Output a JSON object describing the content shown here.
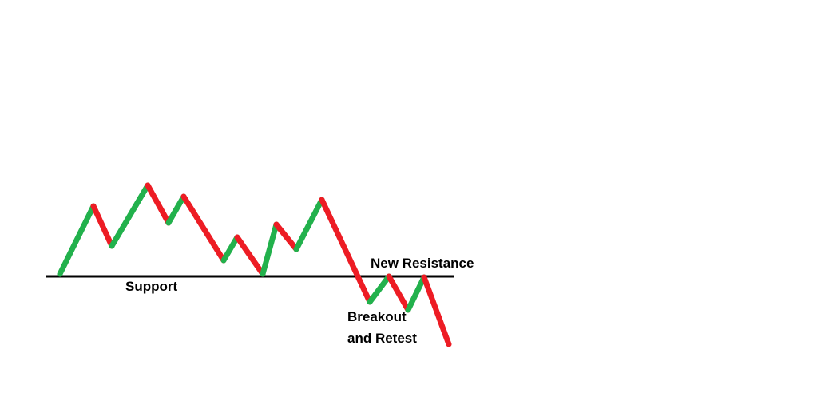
{
  "diagram": {
    "labels": {
      "support": "Support",
      "new_resistance": "New Resistance",
      "breakout_line1": "Breakout",
      "breakout_line2": "and Retest"
    },
    "colors": {
      "up_segment": "#22b14c",
      "down_segment": "#ed1c24",
      "level_line": "#000000",
      "background": "#ffffff"
    },
    "price_path": {
      "description_points": [
        "low",
        "high",
        "pullback",
        "high",
        "pullback",
        "high",
        "decline",
        "bounce",
        "test-support",
        "rally",
        "pullback",
        "high",
        "breakdown",
        "retest",
        "drop",
        "retest",
        "drop"
      ]
    }
  }
}
